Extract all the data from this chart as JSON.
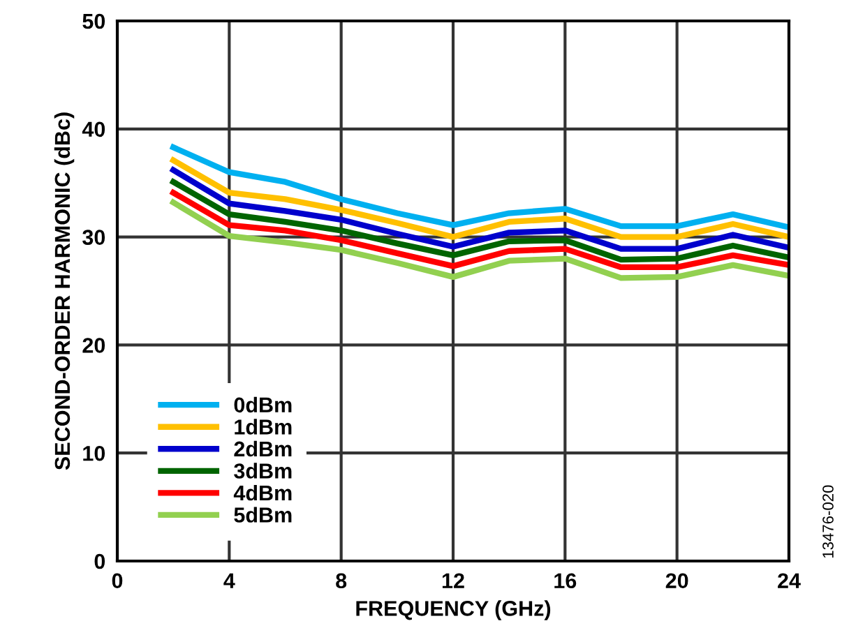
{
  "chart_data": {
    "type": "line",
    "xlabel": "FREQUENCY (GHz)",
    "ylabel": "SECOND-ORDER HARMONIC (dBc)",
    "x": [
      2,
      4,
      6,
      8,
      10,
      12,
      14,
      16,
      18,
      20,
      22,
      24
    ],
    "series": [
      {
        "name": "0dBm",
        "color": "#00b0f0",
        "values": [
          38.3,
          36.0,
          35.1,
          33.5,
          32.2,
          31.1,
          32.2,
          32.6,
          31.0,
          31.0,
          32.1,
          30.9
        ]
      },
      {
        "name": "1dBm",
        "color": "#ffc000",
        "values": [
          37.1,
          34.1,
          33.5,
          32.5,
          31.3,
          30.0,
          31.4,
          31.7,
          30.0,
          30.0,
          31.2,
          30.0
        ]
      },
      {
        "name": "2dBm",
        "color": "#0000cc",
        "values": [
          36.2,
          33.1,
          32.4,
          31.6,
          30.3,
          29.1,
          30.4,
          30.6,
          28.9,
          28.9,
          30.2,
          29.0
        ]
      },
      {
        "name": "3dBm",
        "color": "#006400",
        "values": [
          35.1,
          32.1,
          31.4,
          30.6,
          29.4,
          28.3,
          29.6,
          29.7,
          27.9,
          28.0,
          29.2,
          28.1
        ]
      },
      {
        "name": "4dBm",
        "color": "#ff0000",
        "values": [
          34.1,
          31.1,
          30.6,
          29.7,
          28.5,
          27.3,
          28.7,
          28.9,
          27.2,
          27.2,
          28.3,
          27.4
        ]
      },
      {
        "name": "5dBm",
        "color": "#92d050",
        "values": [
          33.2,
          30.1,
          29.5,
          28.8,
          27.6,
          26.3,
          27.8,
          28.0,
          26.2,
          26.3,
          27.4,
          26.4
        ]
      }
    ],
    "xlim": [
      0,
      24
    ],
    "xticks": [
      0,
      4,
      8,
      12,
      16,
      20,
      24
    ],
    "ylim": [
      0,
      50
    ],
    "yticks": [
      0,
      10,
      20,
      30,
      40,
      50
    ],
    "grid": true,
    "legend": "bottom left",
    "marker": "none",
    "line_style": "solid",
    "annotations": [
      "13476-020"
    ]
  }
}
